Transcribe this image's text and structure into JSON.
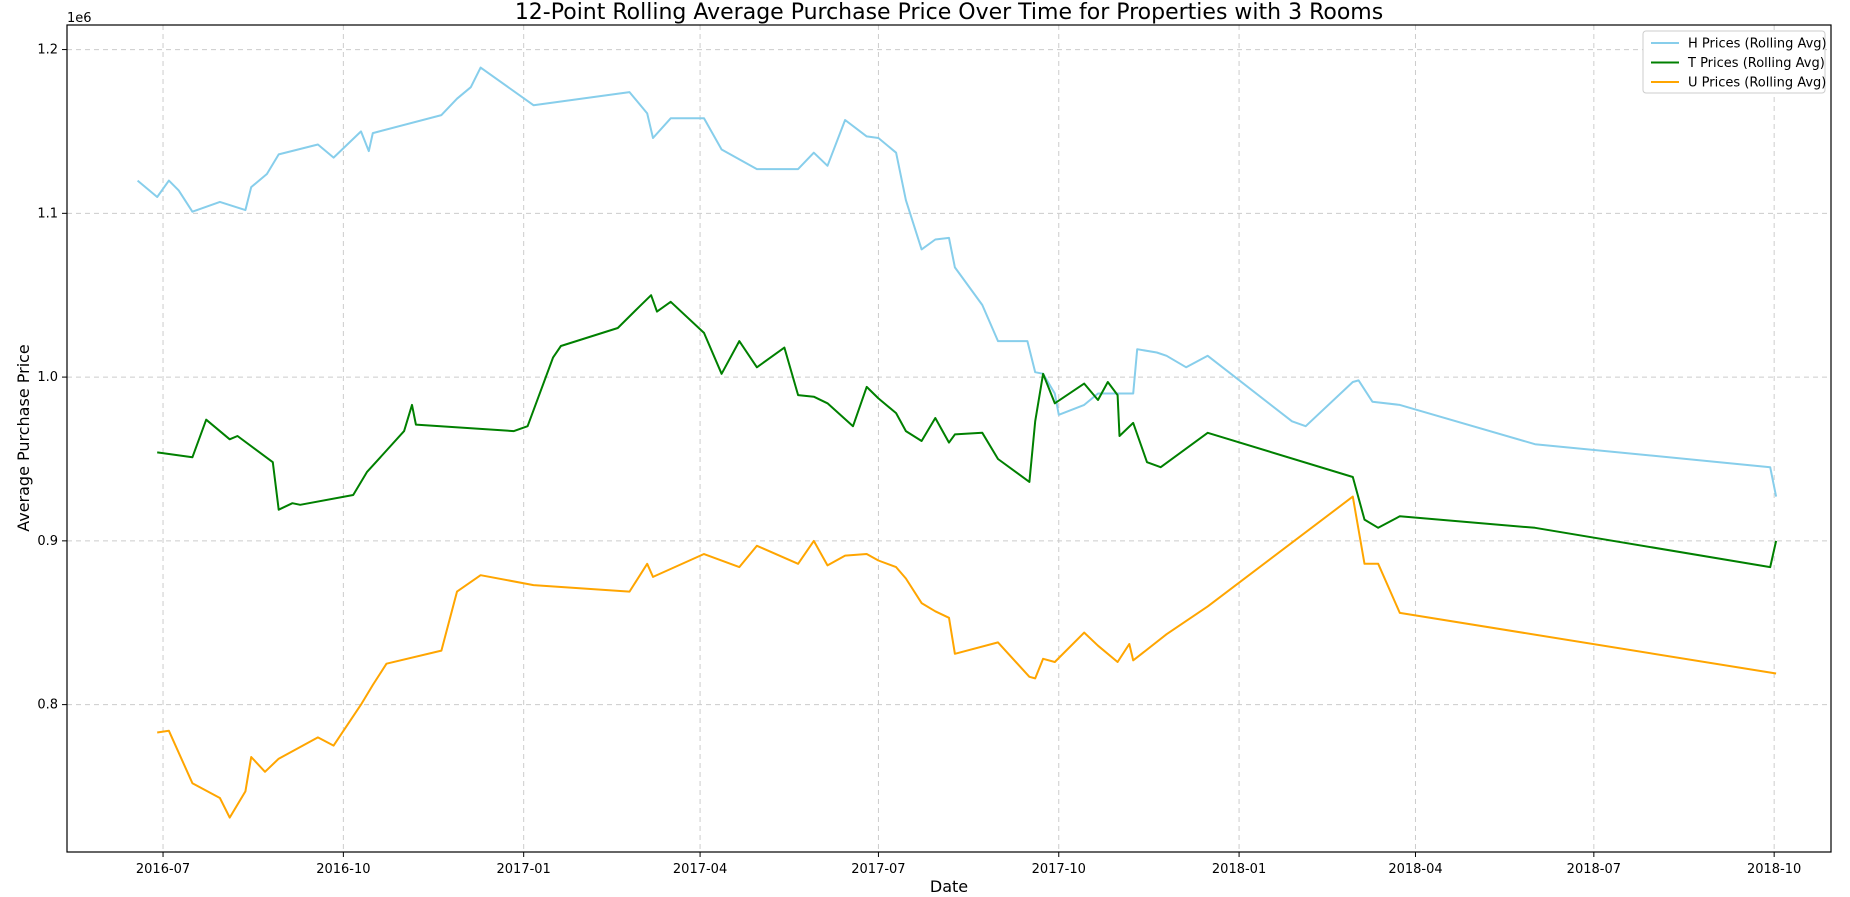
{
  "chart_data": {
    "type": "line",
    "title": "12-Point Rolling Average Purchase Price Over Time for Properties with 3 Rooms",
    "xlabel": "Date",
    "ylabel": "Average Purchase Price",
    "y_offset_text": "1e6",
    "xlim": [
      "2016-05-13",
      "2018-10-30"
    ],
    "ylim": [
      0.71,
      1.215
    ],
    "y_ticks": [
      0.8,
      0.9,
      1.0,
      1.1,
      1.2
    ],
    "y_tick_labels": [
      "0.8",
      "0.9",
      "1.0",
      "1.1",
      "1.2"
    ],
    "x_ticks": [
      "2016-07-01",
      "2016-10-01",
      "2017-01-01",
      "2017-04-01",
      "2017-07-01",
      "2017-10-01",
      "2018-01-01",
      "2018-04-01",
      "2018-07-01",
      "2018-10-01"
    ],
    "x_tick_labels": [
      "2016-07",
      "2016-10",
      "2017-01",
      "2017-04",
      "2017-07",
      "2017-10",
      "2018-01",
      "2018-04",
      "2018-07",
      "2018-10"
    ],
    "grid": true,
    "legend_position": "top-right",
    "series": [
      {
        "name": "H Prices (Rolling Avg)",
        "color": "#87CEEB",
        "points": [
          [
            "2016-06-18",
            1.12
          ],
          [
            "2016-06-28",
            1.11
          ],
          [
            "2016-07-04",
            1.12
          ],
          [
            "2016-07-09",
            1.114
          ],
          [
            "2016-07-16",
            1.101
          ],
          [
            "2016-07-30",
            1.107
          ],
          [
            "2016-08-12",
            1.102
          ],
          [
            "2016-08-15",
            1.116
          ],
          [
            "2016-08-23",
            1.124
          ],
          [
            "2016-08-29",
            1.136
          ],
          [
            "2016-09-18",
            1.142
          ],
          [
            "2016-09-26",
            1.134
          ],
          [
            "2016-10-10",
            1.15
          ],
          [
            "2016-10-14",
            1.138
          ],
          [
            "2016-10-16",
            1.149
          ],
          [
            "2016-11-20",
            1.16
          ],
          [
            "2016-11-28",
            1.17
          ],
          [
            "2016-12-05",
            1.177
          ],
          [
            "2016-12-10",
            1.189
          ],
          [
            "2017-01-06",
            1.166
          ],
          [
            "2017-02-24",
            1.174
          ],
          [
            "2017-03-05",
            1.161
          ],
          [
            "2017-03-08",
            1.146
          ],
          [
            "2017-03-17",
            1.158
          ],
          [
            "2017-04-03",
            1.158
          ],
          [
            "2017-04-12",
            1.139
          ],
          [
            "2017-04-30",
            1.127
          ],
          [
            "2017-05-21",
            1.127
          ],
          [
            "2017-05-29",
            1.137
          ],
          [
            "2017-06-05",
            1.129
          ],
          [
            "2017-06-14",
            1.157
          ],
          [
            "2017-06-25",
            1.147
          ],
          [
            "2017-07-01",
            1.146
          ],
          [
            "2017-07-10",
            1.137
          ],
          [
            "2017-07-15",
            1.108
          ],
          [
            "2017-07-23",
            1.078
          ],
          [
            "2017-07-30",
            1.084
          ],
          [
            "2017-08-06",
            1.085
          ],
          [
            "2017-08-09",
            1.067
          ],
          [
            "2017-08-23",
            1.044
          ],
          [
            "2017-08-31",
            1.022
          ],
          [
            "2017-09-15",
            1.022
          ],
          [
            "2017-09-19",
            1.003
          ],
          [
            "2017-09-23",
            1.002
          ],
          [
            "2017-09-29",
            0.99
          ],
          [
            "2017-10-01",
            0.977
          ],
          [
            "2017-10-14",
            0.983
          ],
          [
            "2017-10-21",
            0.99
          ],
          [
            "2017-10-26",
            0.99
          ],
          [
            "2017-10-31",
            0.99
          ],
          [
            "2017-11-08",
            0.99
          ],
          [
            "2017-11-10",
            1.017
          ],
          [
            "2017-11-20",
            1.015
          ],
          [
            "2017-11-25",
            1.013
          ],
          [
            "2017-12-05",
            1.006
          ],
          [
            "2017-12-16",
            1.013
          ],
          [
            "2018-01-28",
            0.973
          ],
          [
            "2018-02-04",
            0.97
          ],
          [
            "2018-02-28",
            0.997
          ],
          [
            "2018-03-03",
            0.998
          ],
          [
            "2018-03-10",
            0.985
          ],
          [
            "2018-03-24",
            0.983
          ],
          [
            "2018-06-01",
            0.959
          ],
          [
            "2018-09-29",
            0.945
          ],
          [
            "2018-10-02",
            0.927
          ]
        ]
      },
      {
        "name": "T Prices (Rolling Avg)",
        "color": "#008000",
        "points": [
          [
            "2016-06-28",
            0.954
          ],
          [
            "2016-07-16",
            0.951
          ],
          [
            "2016-07-23",
            0.974
          ],
          [
            "2016-08-04",
            0.962
          ],
          [
            "2016-08-08",
            0.964
          ],
          [
            "2016-08-26",
            0.948
          ],
          [
            "2016-08-29",
            0.919
          ],
          [
            "2016-09-05",
            0.923
          ],
          [
            "2016-09-09",
            0.922
          ],
          [
            "2016-10-06",
            0.928
          ],
          [
            "2016-10-13",
            0.942
          ],
          [
            "2016-11-01",
            0.967
          ],
          [
            "2016-11-05",
            0.983
          ],
          [
            "2016-11-07",
            0.971
          ],
          [
            "2016-12-27",
            0.967
          ],
          [
            "2017-01-03",
            0.97
          ],
          [
            "2017-01-16",
            1.012
          ],
          [
            "2017-01-20",
            1.019
          ],
          [
            "2017-02-18",
            1.03
          ],
          [
            "2017-03-01",
            1.043
          ],
          [
            "2017-03-07",
            1.05
          ],
          [
            "2017-03-10",
            1.04
          ],
          [
            "2017-03-17",
            1.046
          ],
          [
            "2017-04-03",
            1.027
          ],
          [
            "2017-04-12",
            1.002
          ],
          [
            "2017-04-21",
            1.022
          ],
          [
            "2017-04-30",
            1.006
          ],
          [
            "2017-05-14",
            1.018
          ],
          [
            "2017-05-21",
            0.989
          ],
          [
            "2017-05-29",
            0.988
          ],
          [
            "2017-06-05",
            0.984
          ],
          [
            "2017-06-18",
            0.97
          ],
          [
            "2017-06-25",
            0.994
          ],
          [
            "2017-07-01",
            0.987
          ],
          [
            "2017-07-10",
            0.978
          ],
          [
            "2017-07-15",
            0.967
          ],
          [
            "2017-07-23",
            0.961
          ],
          [
            "2017-07-30",
            0.975
          ],
          [
            "2017-08-06",
            0.96
          ],
          [
            "2017-08-09",
            0.965
          ],
          [
            "2017-08-23",
            0.966
          ],
          [
            "2017-08-31",
            0.95
          ],
          [
            "2017-09-16",
            0.936
          ],
          [
            "2017-09-19",
            0.973
          ],
          [
            "2017-09-23",
            1.002
          ],
          [
            "2017-09-29",
            0.984
          ],
          [
            "2017-10-14",
            0.996
          ],
          [
            "2017-10-21",
            0.986
          ],
          [
            "2017-10-26",
            0.997
          ],
          [
            "2017-10-31",
            0.989
          ],
          [
            "2017-11-01",
            0.964
          ],
          [
            "2017-11-08",
            0.972
          ],
          [
            "2017-11-15",
            0.948
          ],
          [
            "2017-11-22",
            0.945
          ],
          [
            "2017-12-16",
            0.966
          ],
          [
            "2018-02-28",
            0.939
          ],
          [
            "2018-03-06",
            0.913
          ],
          [
            "2018-03-13",
            0.908
          ],
          [
            "2018-03-24",
            0.915
          ],
          [
            "2018-06-01",
            0.908
          ],
          [
            "2018-09-29",
            0.884
          ],
          [
            "2018-10-02",
            0.9
          ]
        ]
      },
      {
        "name": "U Prices (Rolling Avg)",
        "color": "#FFA500",
        "points": [
          [
            "2016-06-28",
            0.783
          ],
          [
            "2016-07-04",
            0.784
          ],
          [
            "2016-07-16",
            0.752
          ],
          [
            "2016-07-30",
            0.743
          ],
          [
            "2016-08-04",
            0.731
          ],
          [
            "2016-08-12",
            0.747
          ],
          [
            "2016-08-15",
            0.768
          ],
          [
            "2016-08-22",
            0.759
          ],
          [
            "2016-08-29",
            0.767
          ],
          [
            "2016-09-18",
            0.78
          ],
          [
            "2016-09-26",
            0.775
          ],
          [
            "2016-10-10",
            0.8
          ],
          [
            "2016-10-16",
            0.812
          ],
          [
            "2016-10-23",
            0.825
          ],
          [
            "2016-11-20",
            0.833
          ],
          [
            "2016-11-28",
            0.869
          ],
          [
            "2016-12-10",
            0.879
          ],
          [
            "2017-01-06",
            0.873
          ],
          [
            "2017-02-24",
            0.869
          ],
          [
            "2017-03-05",
            0.886
          ],
          [
            "2017-03-08",
            0.878
          ],
          [
            "2017-04-03",
            0.892
          ],
          [
            "2017-04-21",
            0.884
          ],
          [
            "2017-04-30",
            0.897
          ],
          [
            "2017-05-21",
            0.886
          ],
          [
            "2017-05-29",
            0.9
          ],
          [
            "2017-06-05",
            0.885
          ],
          [
            "2017-06-14",
            0.891
          ],
          [
            "2017-06-25",
            0.892
          ],
          [
            "2017-07-01",
            0.888
          ],
          [
            "2017-07-10",
            0.884
          ],
          [
            "2017-07-15",
            0.877
          ],
          [
            "2017-07-23",
            0.862
          ],
          [
            "2017-07-30",
            0.857
          ],
          [
            "2017-08-06",
            0.853
          ],
          [
            "2017-08-09",
            0.831
          ],
          [
            "2017-08-31",
            0.838
          ],
          [
            "2017-09-16",
            0.817
          ],
          [
            "2017-09-19",
            0.816
          ],
          [
            "2017-09-23",
            0.828
          ],
          [
            "2017-09-29",
            0.826
          ],
          [
            "2017-10-14",
            0.844
          ],
          [
            "2017-10-21",
            0.836
          ],
          [
            "2017-10-31",
            0.826
          ],
          [
            "2017-11-06",
            0.837
          ],
          [
            "2017-11-08",
            0.827
          ],
          [
            "2017-11-25",
            0.843
          ],
          [
            "2017-12-16",
            0.86
          ],
          [
            "2018-02-28",
            0.927
          ],
          [
            "2018-03-06",
            0.886
          ],
          [
            "2018-03-13",
            0.886
          ],
          [
            "2018-03-24",
            0.856
          ],
          [
            "2018-10-02",
            0.819
          ]
        ]
      }
    ]
  }
}
